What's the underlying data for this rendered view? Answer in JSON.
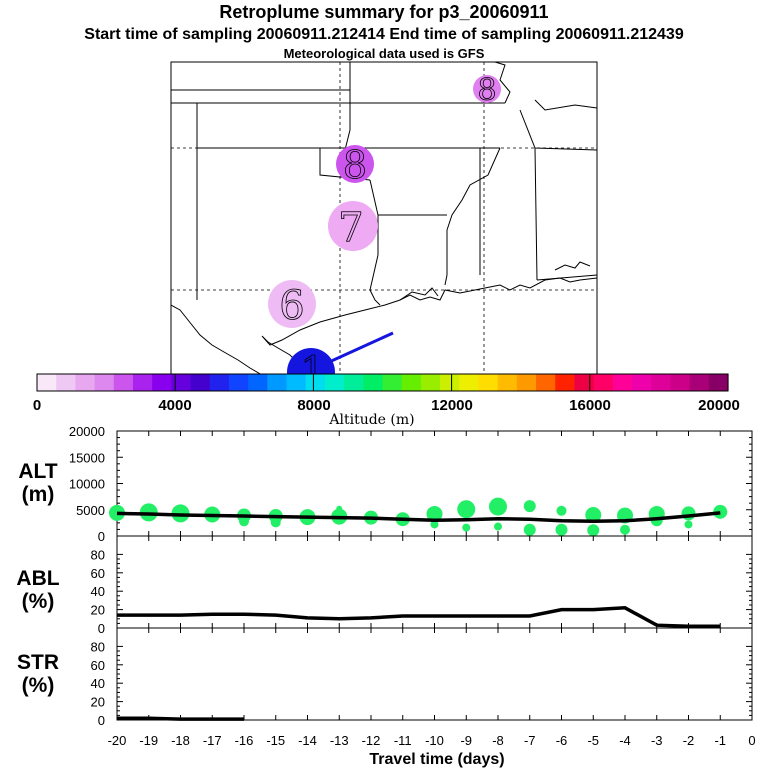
{
  "header": {
    "title": "Retroplume summary for p3_20060911",
    "subtitle": "Start time of sampling 20060911.212414     End time of sampling 20060911.212439",
    "met_source": "Meteorological data used is GFS"
  },
  "map": {
    "clusters": [
      {
        "label": "8",
        "color": "#e080f0"
      },
      {
        "label": "8",
        "color": "#cc55ee"
      },
      {
        "label": "7",
        "color": "#eeaaf2"
      },
      {
        "label": "6",
        "color": "#eebbf4"
      },
      {
        "label": "1",
        "color": "#1515e0"
      }
    ],
    "trajectory_color": "#1515e0"
  },
  "colorbar": {
    "tick_labels": [
      "0",
      "4000",
      "8000",
      "12000",
      "16000",
      "20000"
    ],
    "axis_label": "Altitude (m)",
    "colors": [
      "#f8e8f8",
      "#f0c8f4",
      "#e8a8f0",
      "#dd88ee",
      "#cc55ee",
      "#aa22ee",
      "#8800ee",
      "#6600dd",
      "#4400cc",
      "#2222ee",
      "#1144ff",
      "#0066ff",
      "#0099ff",
      "#00bbff",
      "#00ddee",
      "#00eecc",
      "#00ee99",
      "#00ee66",
      "#33ee33",
      "#66ee00",
      "#99ee00",
      "#ccee00",
      "#eeee00",
      "#ffdd00",
      "#ffbb00",
      "#ff9900",
      "#ff6600",
      "#ff2200",
      "#ee0044",
      "#ff0066",
      "#ff0099",
      "#ee00aa",
      "#dd0099",
      "#cc0088",
      "#aa0077",
      "#880066"
    ]
  },
  "chart_data": [
    {
      "type": "line",
      "title": "ALT (m)",
      "ylabel": "ALT\n(m)",
      "ylabel_lines": [
        "ALT",
        "(m)"
      ],
      "ylim": [
        0,
        20000
      ],
      "yticks": [
        0,
        5000,
        10000,
        15000,
        20000
      ],
      "x": [
        -20,
        -19,
        -18,
        -17,
        -16,
        -15,
        -14,
        -13,
        -12,
        -11,
        -10,
        -9,
        -8,
        -7,
        -6,
        -5,
        -4,
        -3,
        -2,
        -1
      ],
      "values": [
        4300,
        4200,
        4000,
        3900,
        3800,
        3700,
        3600,
        3500,
        3400,
        3200,
        3000,
        3100,
        3300,
        3200,
        2900,
        2800,
        2900,
        3300,
        3800,
        4400
      ],
      "scatter": [
        {
          "x": -20,
          "y": 4400,
          "s": 8
        },
        {
          "x": -19,
          "y": 4500,
          "s": 9
        },
        {
          "x": -18,
          "y": 4300,
          "s": 9
        },
        {
          "x": -17,
          "y": 4100,
          "s": 8
        },
        {
          "x": -16,
          "y": 3900,
          "s": 7
        },
        {
          "x": -16,
          "y": 2800,
          "s": 5
        },
        {
          "x": -15,
          "y": 3800,
          "s": 7
        },
        {
          "x": -15,
          "y": 2600,
          "s": 5
        },
        {
          "x": -14,
          "y": 3600,
          "s": 8
        },
        {
          "x": -13,
          "y": 3700,
          "s": 8
        },
        {
          "x": -13,
          "y": 5200,
          "s": 3
        },
        {
          "x": -12,
          "y": 3500,
          "s": 7
        },
        {
          "x": -11,
          "y": 3200,
          "s": 7
        },
        {
          "x": -10,
          "y": 4200,
          "s": 8
        },
        {
          "x": -10,
          "y": 2200,
          "s": 4
        },
        {
          "x": -9,
          "y": 5100,
          "s": 9
        },
        {
          "x": -9,
          "y": 1600,
          "s": 4
        },
        {
          "x": -8,
          "y": 5600,
          "s": 9
        },
        {
          "x": -8,
          "y": 1800,
          "s": 4
        },
        {
          "x": -7,
          "y": 5700,
          "s": 6
        },
        {
          "x": -7,
          "y": 1200,
          "s": 6
        },
        {
          "x": -6,
          "y": 4800,
          "s": 5
        },
        {
          "x": -6,
          "y": 1200,
          "s": 6
        },
        {
          "x": -5,
          "y": 4000,
          "s": 8
        },
        {
          "x": -5,
          "y": 1100,
          "s": 6
        },
        {
          "x": -4,
          "y": 3900,
          "s": 8
        },
        {
          "x": -4,
          "y": 1200,
          "s": 5
        },
        {
          "x": -3,
          "y": 4200,
          "s": 8
        },
        {
          "x": -3,
          "y": 3000,
          "s": 6
        },
        {
          "x": -2,
          "y": 4300,
          "s": 7
        },
        {
          "x": -2,
          "y": 2200,
          "s": 4
        },
        {
          "x": -1,
          "y": 4600,
          "s": 7
        }
      ],
      "point_color": "#22ee66"
    },
    {
      "type": "line",
      "title": "ABL (%)",
      "ylabel": "ABL\n(%)",
      "ylabel_lines": [
        "ABL",
        "(%)"
      ],
      "ylim": [
        0,
        100
      ],
      "yticks": [
        0,
        20,
        40,
        60,
        80
      ],
      "x": [
        -20,
        -19,
        -18,
        -17,
        -16,
        -15,
        -14,
        -13,
        -12,
        -11,
        -10,
        -9,
        -8,
        -7,
        -6,
        -5,
        -4,
        -3,
        -2,
        -1
      ],
      "values": [
        14,
        14,
        14,
        15,
        15,
        14,
        11,
        10,
        11,
        13,
        13,
        13,
        13,
        13,
        20,
        20,
        22,
        3,
        2,
        2
      ]
    },
    {
      "type": "line",
      "title": "STR (%)",
      "ylabel": "STR\n(%)",
      "ylabel_lines": [
        "STR",
        "(%)"
      ],
      "ylim": [
        0,
        100
      ],
      "yticks": [
        0,
        20,
        40,
        60,
        80
      ],
      "x": [
        -20,
        -19,
        -18,
        -17,
        -16
      ],
      "values": [
        2,
        2,
        1,
        1,
        1
      ]
    }
  ],
  "xaxis": {
    "label": "Travel time (days)",
    "xlim": [
      -20,
      0
    ],
    "ticks": [
      "-20",
      "-19",
      "-18",
      "-17",
      "-16",
      "-15",
      "-14",
      "-13",
      "-12",
      "-11",
      "-10",
      "-9",
      "-8",
      "-7",
      "-6",
      "-5",
      "-4",
      "-3",
      "-2",
      "-1",
      "0"
    ]
  }
}
